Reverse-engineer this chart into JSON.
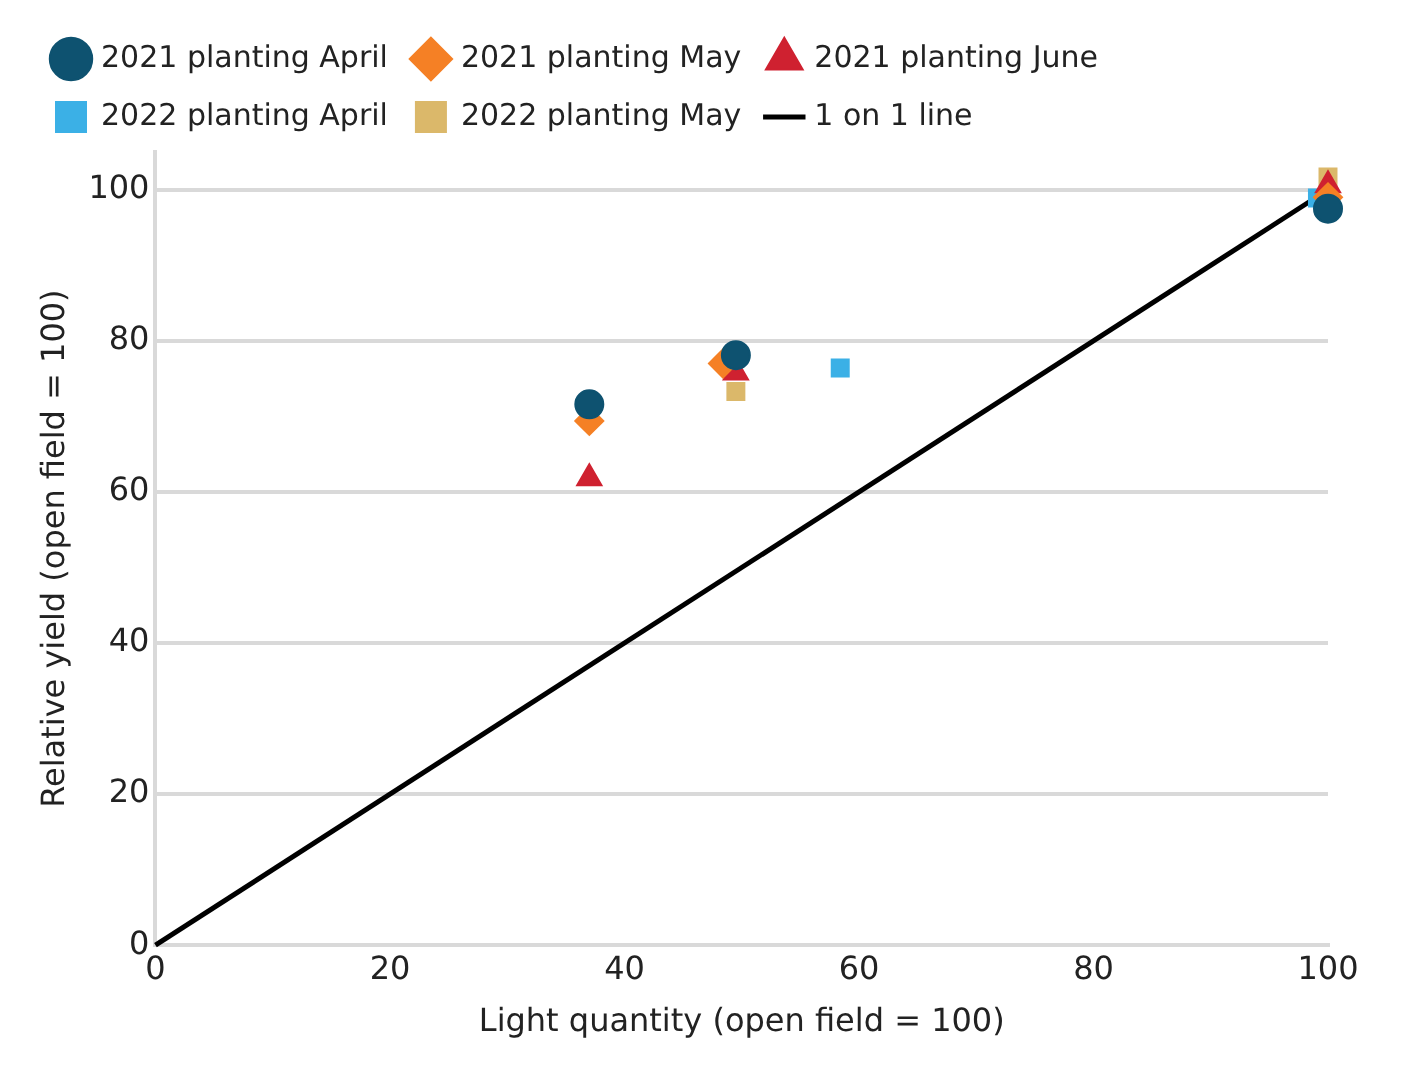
{
  "chart_data": {
    "type": "scatter",
    "xlabel": "Light quantity (open field = 100)",
    "ylabel": "Relative yield (open field = 100)",
    "xlim": [
      0,
      100
    ],
    "xticks": [
      0,
      20,
      40,
      60,
      80,
      100
    ],
    "ylim": [
      0,
      105
    ],
    "yticks": [
      0,
      20,
      40,
      60,
      80,
      100
    ],
    "grid": "y",
    "legend": "top",
    "series": [
      {
        "name": "2021 planting April",
        "color": "#0e5270",
        "marker": "circle",
        "x": [
          37,
          49.5,
          100
        ],
        "values": [
          71.6,
          78.1,
          97.5
        ]
      },
      {
        "name": "2021 planting May",
        "color": "#f58025",
        "marker": "diamond",
        "x": [
          37,
          48.4,
          100
        ],
        "values": [
          69.4,
          77,
          99
        ]
      },
      {
        "name": "2021 planting June",
        "color": "#cf2130",
        "marker": "triangle",
        "x": [
          37,
          49.5,
          100
        ],
        "values": [
          61.8,
          75.8,
          100.6
        ]
      },
      {
        "name": "2022 planting April",
        "color": "#3bb0e6",
        "marker": "square",
        "x": [
          58.4,
          99.1
        ],
        "values": [
          76.4,
          98.9
        ]
      },
      {
        "name": "2022 planting May",
        "color": "#dbb86a",
        "marker": "square",
        "x": [
          49.5,
          100
        ],
        "values": [
          73.3,
          101.7
        ]
      },
      {
        "name": "1 on 1 line",
        "type": "line",
        "color": "#000000",
        "marker": "none",
        "x": [
          0,
          100
        ],
        "values": [
          0,
          100
        ]
      }
    ]
  }
}
